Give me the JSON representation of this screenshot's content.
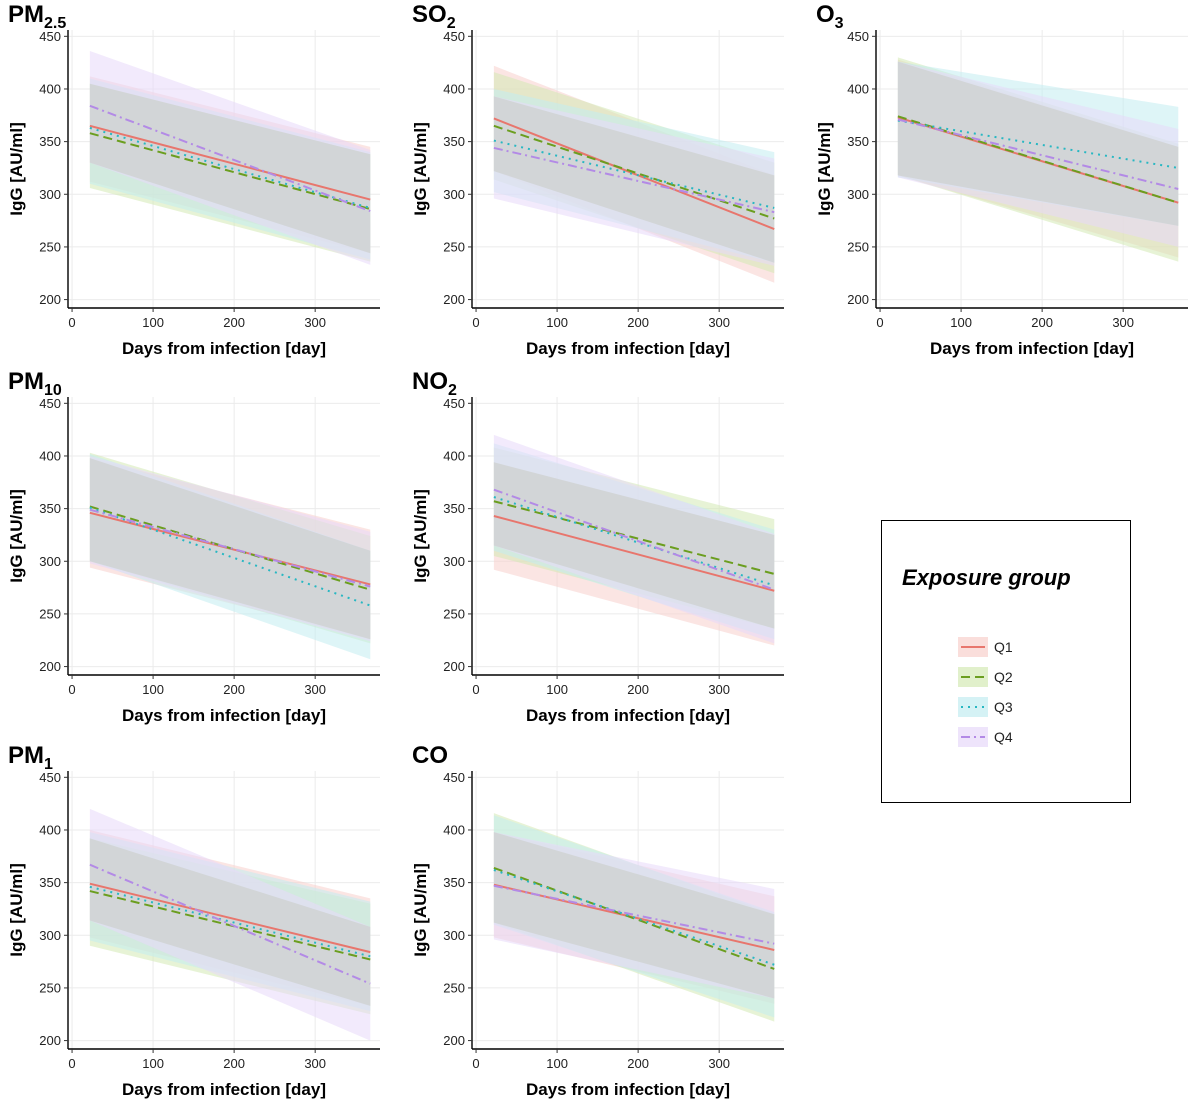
{
  "chart_data": [
    {
      "type": "line",
      "panel_id": "pm25",
      "title_main": "PM",
      "title_sub": "2.5",
      "xlabel": "Days from infection [day]",
      "ylabel": "IgG [AU/ml]",
      "xlim": [
        -5,
        380
      ],
      "ylim": [
        192,
        456
      ],
      "xticks": [
        0,
        100,
        200,
        300
      ],
      "yticks": [
        200,
        250,
        300,
        350,
        400,
        450
      ],
      "grid": true,
      "series": [
        {
          "name": "Q1",
          "x": [
            22,
            368
          ],
          "y": [
            365,
            295
          ],
          "ci_lower": [
            312,
            244
          ],
          "ci_upper": [
            412,
            345
          ]
        },
        {
          "name": "Q2",
          "x": [
            22,
            368
          ],
          "y": [
            358,
            286
          ],
          "ci_lower": [
            306,
            236
          ],
          "ci_upper": [
            405,
            338
          ]
        },
        {
          "name": "Q3",
          "x": [
            22,
            368
          ],
          "y": [
            363,
            287
          ],
          "ci_lower": [
            310,
            238
          ],
          "ci_upper": [
            410,
            340
          ]
        },
        {
          "name": "Q4",
          "x": [
            22,
            368
          ],
          "y": [
            384,
            284
          ],
          "ci_lower": [
            330,
            233
          ],
          "ci_upper": [
            436,
            342
          ]
        }
      ]
    },
    {
      "type": "line",
      "panel_id": "so2",
      "title_main": "SO",
      "title_sub": "2",
      "xlabel": "Days from infection [day]",
      "ylabel": "IgG [AU/ml]",
      "xlim": [
        -5,
        380
      ],
      "ylim": [
        192,
        456
      ],
      "xticks": [
        0,
        100,
        200,
        300
      ],
      "yticks": [
        200,
        250,
        300,
        350,
        400,
        450
      ],
      "grid": true,
      "series": [
        {
          "name": "Q1",
          "x": [
            22,
            368
          ],
          "y": [
            372,
            267
          ],
          "ci_lower": [
            322,
            216
          ],
          "ci_upper": [
            422,
            318
          ]
        },
        {
          "name": "Q2",
          "x": [
            22,
            368
          ],
          "y": [
            365,
            277
          ],
          "ci_lower": [
            314,
            225
          ],
          "ci_upper": [
            416,
            330
          ]
        },
        {
          "name": "Q3",
          "x": [
            22,
            368
          ],
          "y": [
            351,
            287
          ],
          "ci_lower": [
            302,
            235
          ],
          "ci_upper": [
            400,
            340
          ]
        },
        {
          "name": "Q4",
          "x": [
            22,
            368
          ],
          "y": [
            344,
            283
          ],
          "ci_lower": [
            296,
            232
          ],
          "ci_upper": [
            393,
            334
          ]
        }
      ]
    },
    {
      "type": "line",
      "panel_id": "o3",
      "title_main": "O",
      "title_sub": "3",
      "xlabel": "Days from infection [day]",
      "ylabel": "IgG [AU/ml]",
      "xlim": [
        -5,
        380
      ],
      "ylim": [
        192,
        456
      ],
      "xticks": [
        0,
        100,
        200,
        300
      ],
      "yticks": [
        200,
        250,
        300,
        350,
        400,
        450
      ],
      "grid": true,
      "series": [
        {
          "name": "Q1",
          "x": [
            22,
            368
          ],
          "y": [
            373,
            292
          ],
          "ci_lower": [
            318,
            240
          ],
          "ci_upper": [
            428,
            345
          ]
        },
        {
          "name": "Q2",
          "x": [
            22,
            368
          ],
          "y": [
            374,
            292
          ],
          "ci_lower": [
            318,
            236
          ],
          "ci_upper": [
            430,
            348
          ]
        },
        {
          "name": "Q3",
          "x": [
            22,
            368
          ],
          "y": [
            370,
            325
          ],
          "ci_lower": [
            316,
            270
          ],
          "ci_upper": [
            426,
            383
          ]
        },
        {
          "name": "Q4",
          "x": [
            22,
            368
          ],
          "y": [
            371,
            305
          ],
          "ci_lower": [
            316,
            250
          ],
          "ci_upper": [
            426,
            362
          ]
        }
      ]
    },
    {
      "type": "line",
      "panel_id": "pm10",
      "title_main": "PM",
      "title_sub": "10",
      "xlabel": "Days from infection [day]",
      "ylabel": "IgG [AU/ml]",
      "xlim": [
        -5,
        380
      ],
      "ylim": [
        192,
        456
      ],
      "xticks": [
        0,
        100,
        200,
        300
      ],
      "yticks": [
        200,
        250,
        300,
        350,
        400,
        450
      ],
      "grid": true,
      "series": [
        {
          "name": "Q1",
          "x": [
            22,
            368
          ],
          "y": [
            346,
            278
          ],
          "ci_lower": [
            294,
            226
          ],
          "ci_upper": [
            398,
            330
          ]
        },
        {
          "name": "Q2",
          "x": [
            22,
            368
          ],
          "y": [
            352,
            273
          ],
          "ci_lower": [
            300,
            222
          ],
          "ci_upper": [
            403,
            324
          ]
        },
        {
          "name": "Q3",
          "x": [
            22,
            368
          ],
          "y": [
            351,
            258
          ],
          "ci_lower": [
            300,
            207
          ],
          "ci_upper": [
            402,
            310
          ]
        },
        {
          "name": "Q4",
          "x": [
            22,
            368
          ],
          "y": [
            349,
            276
          ],
          "ci_lower": [
            298,
            224
          ],
          "ci_upper": [
            400,
            328
          ]
        }
      ]
    },
    {
      "type": "line",
      "panel_id": "no2",
      "title_main": "NO",
      "title_sub": "2",
      "xlabel": "Days from infection [day]",
      "ylabel": "IgG [AU/ml]",
      "xlim": [
        -5,
        380
      ],
      "ylim": [
        192,
        456
      ],
      "xticks": [
        0,
        100,
        200,
        300
      ],
      "yticks": [
        200,
        250,
        300,
        350,
        400,
        450
      ],
      "grid": true,
      "series": [
        {
          "name": "Q1",
          "x": [
            22,
            368
          ],
          "y": [
            343,
            272
          ],
          "ci_lower": [
            292,
            220
          ],
          "ci_upper": [
            394,
            325
          ]
        },
        {
          "name": "Q2",
          "x": [
            22,
            368
          ],
          "y": [
            357,
            288
          ],
          "ci_lower": [
            305,
            236
          ],
          "ci_upper": [
            408,
            340
          ]
        },
        {
          "name": "Q3",
          "x": [
            22,
            368
          ],
          "y": [
            361,
            277
          ],
          "ci_lower": [
            310,
            226
          ],
          "ci_upper": [
            412,
            330
          ]
        },
        {
          "name": "Q4",
          "x": [
            22,
            368
          ],
          "y": [
            368,
            273
          ],
          "ci_lower": [
            315,
            222
          ],
          "ci_upper": [
            420,
            326
          ]
        }
      ]
    },
    {
      "type": "line",
      "panel_id": "pm1",
      "title_main": "PM",
      "title_sub": "1",
      "xlabel": "Days from infection [day]",
      "ylabel": "IgG [AU/ml]",
      "xlim": [
        -5,
        380
      ],
      "ylim": [
        192,
        456
      ],
      "xticks": [
        0,
        100,
        200,
        300
      ],
      "yticks": [
        200,
        250,
        300,
        350,
        400,
        450
      ],
      "grid": true,
      "series": [
        {
          "name": "Q1",
          "x": [
            22,
            368
          ],
          "y": [
            349,
            284
          ],
          "ci_lower": [
            298,
            233
          ],
          "ci_upper": [
            400,
            335
          ]
        },
        {
          "name": "Q2",
          "x": [
            22,
            368
          ],
          "y": [
            342,
            277
          ],
          "ci_lower": [
            290,
            225
          ],
          "ci_upper": [
            392,
            330
          ]
        },
        {
          "name": "Q3",
          "x": [
            22,
            368
          ],
          "y": [
            346,
            280
          ],
          "ci_lower": [
            295,
            228
          ],
          "ci_upper": [
            398,
            332
          ]
        },
        {
          "name": "Q4",
          "x": [
            22,
            368
          ],
          "y": [
            367,
            254
          ],
          "ci_lower": [
            314,
            200
          ],
          "ci_upper": [
            420,
            308
          ]
        }
      ]
    },
    {
      "type": "line",
      "panel_id": "co",
      "title_main": "CO",
      "title_sub": "",
      "xlabel": "Days from infection [day]",
      "ylabel": "IgG [AU/ml]",
      "xlim": [
        -5,
        380
      ],
      "ylim": [
        192,
        456
      ],
      "xticks": [
        0,
        100,
        200,
        300
      ],
      "yticks": [
        200,
        250,
        300,
        350,
        400,
        450
      ],
      "grid": true,
      "series": [
        {
          "name": "Q1",
          "x": [
            22,
            368
          ],
          "y": [
            348,
            286
          ],
          "ci_lower": [
            298,
            235
          ],
          "ci_upper": [
            398,
            337
          ]
        },
        {
          "name": "Q2",
          "x": [
            22,
            368
          ],
          "y": [
            364,
            268
          ],
          "ci_lower": [
            312,
            218
          ],
          "ci_upper": [
            416,
            320
          ]
        },
        {
          "name": "Q3",
          "x": [
            22,
            368
          ],
          "y": [
            362,
            272
          ],
          "ci_lower": [
            310,
            222
          ],
          "ci_upper": [
            414,
            322
          ]
        },
        {
          "name": "Q4",
          "x": [
            22,
            368
          ],
          "y": [
            347,
            292
          ],
          "ci_lower": [
            296,
            240
          ],
          "ci_upper": [
            398,
            344
          ]
        }
      ]
    }
  ],
  "legend": {
    "title": "Exposure group",
    "placement": "right-middle",
    "items": [
      {
        "name": "Q1",
        "color": "#e8766d",
        "fill": "#f8d0cc",
        "dash": "solid"
      },
      {
        "name": "Q2",
        "color": "#6b9e1f",
        "fill": "#d4e9b5",
        "dash": "dashed"
      },
      {
        "name": "Q3",
        "color": "#27b7c2",
        "fill": "#c3ecf1",
        "dash": "dotted"
      },
      {
        "name": "Q4",
        "color": "#b38ae6",
        "fill": "#e7d9fa",
        "dash": "dotdash"
      }
    ]
  }
}
